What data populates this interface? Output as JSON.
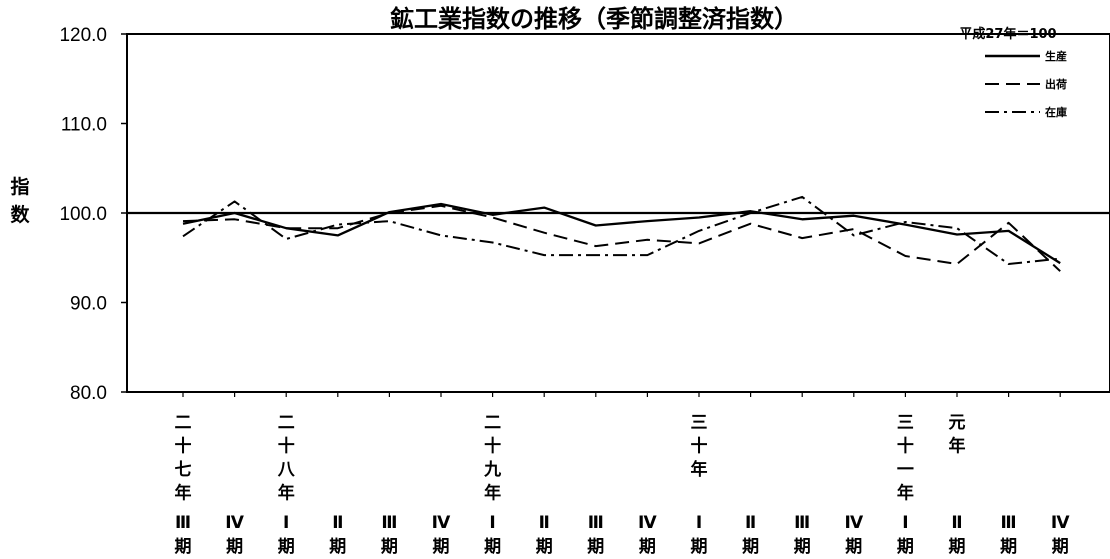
{
  "chart_data": {
    "type": "line",
    "title": "鉱工業指数の推移（季節調整済指数）",
    "base_note": "平成27年＝100",
    "ylabel": "指数",
    "ylim": [
      80,
      120
    ],
    "yticks": [
      "80.0",
      "90.0",
      "100.0",
      "110.0",
      "120.0"
    ],
    "reference_line": 100,
    "legend_position": "top-right",
    "categories": [
      {
        "era": "二十七年",
        "q": "Ⅲ",
        "ki": "期"
      },
      {
        "era": "",
        "q": "Ⅳ",
        "ki": "期"
      },
      {
        "era": "二十八年",
        "q": "Ⅰ",
        "ki": "期"
      },
      {
        "era": "",
        "q": "Ⅱ",
        "ki": "期"
      },
      {
        "era": "",
        "q": "Ⅲ",
        "ki": "期"
      },
      {
        "era": "",
        "q": "Ⅳ",
        "ki": "期"
      },
      {
        "era": "二十九年",
        "q": "Ⅰ",
        "ki": "期"
      },
      {
        "era": "",
        "q": "Ⅱ",
        "ki": "期"
      },
      {
        "era": "",
        "q": "Ⅲ",
        "ki": "期"
      },
      {
        "era": "",
        "q": "Ⅳ",
        "ki": "期"
      },
      {
        "era": "三十年",
        "q": "Ⅰ",
        "ki": "期"
      },
      {
        "era": "",
        "q": "Ⅱ",
        "ki": "期"
      },
      {
        "era": "",
        "q": "Ⅲ",
        "ki": "期"
      },
      {
        "era": "",
        "q": "Ⅳ",
        "ki": "期"
      },
      {
        "era": "三十一年",
        "q": "Ⅰ",
        "ki": "期"
      },
      {
        "era": "元年",
        "q": "Ⅱ",
        "ki": "期"
      },
      {
        "era": "",
        "q": "Ⅲ",
        "ki": "期"
      },
      {
        "era": "",
        "q": "Ⅳ",
        "ki": "期"
      }
    ],
    "series": [
      {
        "name": "生産",
        "style": "solid",
        "color": "#000000",
        "values": [
          98.8,
          100.0,
          98.3,
          97.5,
          100.1,
          101.0,
          99.8,
          100.6,
          98.6,
          99.1,
          99.5,
          100.2,
          99.3,
          99.7,
          98.7,
          97.6,
          98.0,
          94.4
        ]
      },
      {
        "name": "出荷",
        "style": "dashed",
        "color": "#000000",
        "values": [
          99.1,
          99.3,
          98.3,
          98.3,
          100.0,
          100.8,
          99.5,
          97.8,
          96.3,
          97.0,
          96.6,
          98.8,
          97.2,
          98.2,
          95.2,
          94.3,
          98.9,
          93.5
        ]
      },
      {
        "name": "在庫",
        "style": "dashdot",
        "color": "#000000",
        "values": [
          97.4,
          101.3,
          97.1,
          98.7,
          99.1,
          97.5,
          96.7,
          95.3,
          95.3,
          95.3,
          98.0,
          100.0,
          101.8,
          97.5,
          99.0,
          98.3,
          94.3,
          94.9
        ]
      }
    ]
  }
}
